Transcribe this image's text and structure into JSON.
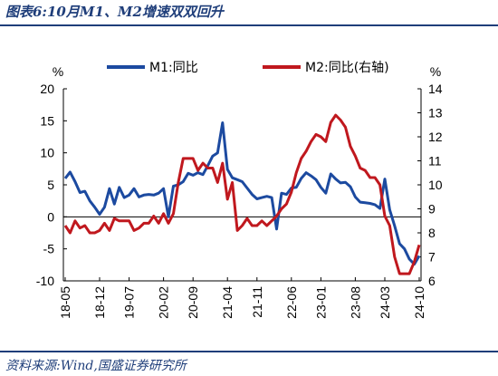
{
  "header": {
    "title": "图表6:10月M1、M2增速双双回升"
  },
  "footer": {
    "source": "资料来源:Wind,国盛证券研究所"
  },
  "colors": {
    "m1": "#1c4aa0",
    "m2": "#c0181e",
    "axis": "#000000",
    "accent": "#1f3e7a"
  },
  "chart_data": {
    "type": "line",
    "grid": false,
    "legend_position": "top",
    "y_left": {
      "label": "%",
      "lim": [
        -10,
        20
      ],
      "ticks": [
        20,
        15,
        10,
        5,
        0,
        -5,
        -10
      ]
    },
    "y_right": {
      "label": "%",
      "lim": [
        6,
        14
      ],
      "ticks": [
        14,
        13,
        12,
        11,
        10,
        9,
        8,
        7,
        6
      ]
    },
    "x_ticks": [
      "18-05",
      "18-12",
      "19-07",
      "20-02",
      "20-09",
      "21-04",
      "21-11",
      "22-06",
      "23-01",
      "23-08",
      "24-03",
      "24-10"
    ],
    "series": [
      {
        "name": "M1:同比",
        "axis": "left",
        "values": [
          6.0,
          7.0,
          5.5,
          3.8,
          4.0,
          2.5,
          1.5,
          0.4,
          1.5,
          4.4,
          2.0,
          4.6,
          3.0,
          3.4,
          4.4,
          3.1,
          3.4,
          3.5,
          3.4,
          3.7,
          4.4,
          0.0,
          4.8,
          5.0,
          5.5,
          6.8,
          6.5,
          6.9,
          6.6,
          8.0,
          9.5,
          10.0,
          14.7,
          7.4,
          6.1,
          5.8,
          5.5,
          4.5,
          3.5,
          2.8,
          3.0,
          3.2,
          3.0,
          -1.9,
          3.7,
          3.5,
          4.5,
          4.6,
          6.0,
          6.9,
          6.4,
          5.8,
          4.6,
          3.7,
          6.7,
          5.9,
          5.3,
          5.4,
          4.7,
          3.1,
          2.3,
          2.2,
          2.1,
          1.9,
          1.3,
          5.9,
          1.1,
          -1.4,
          -4.2,
          -5.0,
          -6.6,
          -7.4,
          -6.1
        ]
      },
      {
        "name": "M2:同比(右轴)",
        "axis": "right",
        "values": [
          8.3,
          8.0,
          8.5,
          8.2,
          8.3,
          8.0,
          8.0,
          8.1,
          8.4,
          8.1,
          8.6,
          8.5,
          8.5,
          8.5,
          8.1,
          8.2,
          8.4,
          8.4,
          8.7,
          8.4,
          8.8,
          8.4,
          8.8,
          10.1,
          11.1,
          11.1,
          11.1,
          10.6,
          10.9,
          10.7,
          10.7,
          10.1,
          10.9,
          9.4,
          10.1,
          8.1,
          8.3,
          8.6,
          8.3,
          8.3,
          8.5,
          8.3,
          8.5,
          8.7,
          9.0,
          9.2,
          9.7,
          10.5,
          11.1,
          11.4,
          11.8,
          12.1,
          12.0,
          11.8,
          12.6,
          12.9,
          12.7,
          12.4,
          11.6,
          11.2,
          10.7,
          10.6,
          10.3,
          10.3,
          10.0,
          8.7,
          8.3,
          7.0,
          6.3,
          6.3,
          6.3,
          6.8,
          7.5
        ]
      }
    ]
  }
}
